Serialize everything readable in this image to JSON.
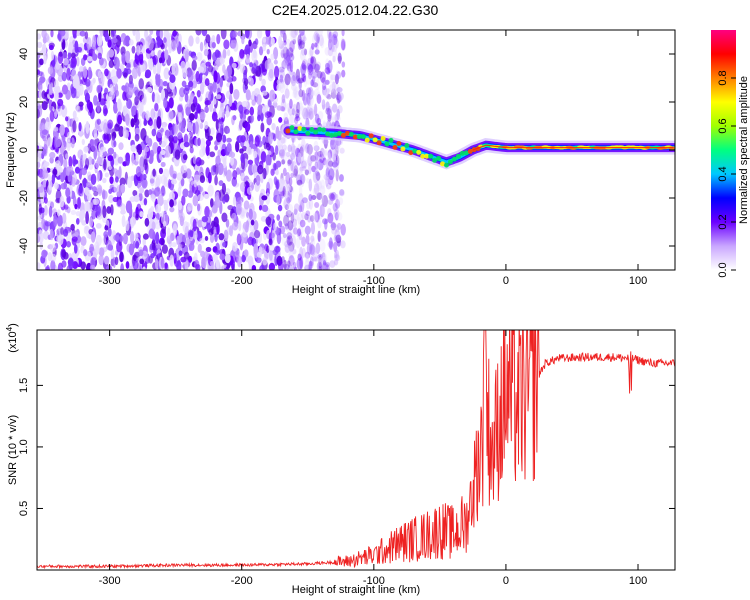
{
  "title": "C2E4.2025.012.04.22.G30",
  "chart_data": [
    {
      "type": "heatmap",
      "xlabel": "Height of straight line (km)",
      "ylabel": "Frequency (Hz)",
      "xlim": [
        -355,
        128
      ],
      "ylim": [
        -50,
        50
      ],
      "xticks": [
        -300,
        -200,
        -100,
        0,
        100
      ],
      "yticks": [
        -40,
        -20,
        0,
        20,
        40
      ],
      "colorbar": {
        "label": "Normalized spectral amplitude",
        "range": [
          0,
          1
        ],
        "ticks": [
          "0.0",
          "0.2",
          "0.4",
          "0.6",
          "0.8"
        ],
        "colors": [
          "#ffffff",
          "#c9a6ff",
          "#6a00ff",
          "#0000ff",
          "#00c8ff",
          "#00ff80",
          "#a0ff00",
          "#ffff00",
          "#ff8000",
          "#ff0000",
          "#ff0080"
        ]
      },
      "signal_track": {
        "x": [
          -165,
          -130,
          -110,
          -90,
          -70,
          -55,
          -45,
          -35,
          -25,
          -15,
          0,
          20,
          50,
          80,
          100,
          128
        ],
        "frequency": [
          8,
          7,
          6,
          3,
          0,
          -3,
          -5,
          -3,
          0,
          2,
          1,
          1,
          1,
          1,
          1,
          1
        ]
      },
      "noise_region_xlim": [
        -355,
        -135
      ],
      "grid": false
    },
    {
      "type": "line",
      "xlabel": "Height of straight line (km)",
      "ylabel": "SNR (10 * v/v)",
      "multiplier_label": "(x10",
      "multiplier_exp": "4",
      "multiplier_close": ")",
      "xlim": [
        -355,
        128
      ],
      "ylim": [
        0,
        1.95
      ],
      "xticks": [
        -300,
        -200,
        -100,
        0,
        100
      ],
      "yticks": [
        "0.5",
        "1.0",
        "1.5"
      ],
      "color": "#ee2222",
      "x": [
        -355,
        -300,
        -250,
        -200,
        -150,
        -120,
        -100,
        -80,
        -60,
        -50,
        -40,
        -30,
        -25,
        -20,
        -15,
        -10,
        -5,
        0,
        10,
        20,
        30,
        40,
        60,
        80,
        95,
        110,
        128
      ],
      "y": [
        0.03,
        0.03,
        0.04,
        0.04,
        0.05,
        0.07,
        0.12,
        0.22,
        0.28,
        0.33,
        0.3,
        0.38,
        0.65,
        0.95,
        1.3,
        0.95,
        1.25,
        1.45,
        1.35,
        1.5,
        1.68,
        1.72,
        1.73,
        1.73,
        1.72,
        1.68,
        1.68
      ],
      "grid": false
    }
  ]
}
